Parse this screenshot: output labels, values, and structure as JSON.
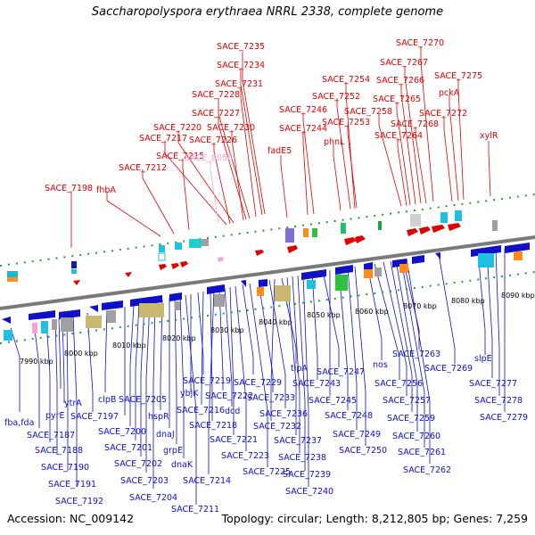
{
  "title": "Saccharopolyspora erythraea NRRL 2338, complete genome",
  "footer": {
    "accession": "Accession: NC_009142",
    "topology": "Topology: circular; Length: 8,212,805 bp; Genes: 7,259"
  },
  "colors": {
    "forward": "#e00000",
    "reverse": "#1010c8",
    "highlight": "#ff9fd8",
    "backbone": "#7a7a7a"
  },
  "kbp_ticks": [
    "7990 kbp",
    "8000 kbp",
    "8010 kbp",
    "8020 kbp",
    "8030 kbp",
    "8040 kbp",
    "8050 kbp",
    "8060 kbp",
    "8070 kbp",
    "8080 kbp",
    "8090 kbp"
  ],
  "forward_labels": [
    "SACE_7235",
    "SACE_7234",
    "SACE_7231",
    "SACE_7228",
    "SACE_7227",
    "SACE_7230",
    "SACE_7220",
    "SACE_7226",
    "SACE_7217",
    "SACE_7215",
    "SACE_8050",
    "SACE_7212",
    "SACE_7198",
    "fhbA",
    "SACE_7254",
    "SACE_7252",
    "SACE_7246",
    "SACE_7253",
    "SACE_7244",
    "phnL",
    "fadE5",
    "SACE_7270",
    "SACE_7267",
    "SACE_7266",
    "SACE_7275",
    "SACE_7265",
    "pckA",
    "SACE_7258",
    "SACE_7272",
    "SACE_7268",
    "SACE_7264",
    "xylR"
  ],
  "reverse_labels": [
    "ytrA",
    "pyrE",
    "fba,fda",
    "SACE_7187",
    "SACE_7188",
    "SACE_7190",
    "SACE_7191",
    "SACE_7192",
    "clpB",
    "SACE_7197",
    "SACE_7205",
    "SACE_7200",
    "SACE_7201",
    "SACE_7202",
    "SACE_7203",
    "SACE_7204",
    "hspR",
    "dnaJ",
    "grpE",
    "dnaK",
    "SACE_7211",
    "ybjK",
    "SACE_7219",
    "SACE_7216",
    "SACE_7218",
    "SACE_7214",
    "SACE_7222",
    "dcd",
    "SACE_7221",
    "SACE_7223",
    "SACE_7229",
    "SACE_7225",
    "SACE_7233",
    "SACE_7236",
    "SACE_7232",
    "tipA",
    "SACE_7237",
    "SACE_7238",
    "SACE_7239",
    "SACE_7240",
    "SACE_7243",
    "SACE_7247",
    "SACE_7245",
    "SACE_7248",
    "SACE_7249",
    "SACE_7250",
    "nos",
    "SACE_7256",
    "SACE_7263",
    "SACE_7257",
    "SACE_7259",
    "SACE_7260",
    "SACE_7261",
    "SACE_7262",
    "SACE_7269",
    "slpE",
    "SACE_7277",
    "SACE_7278",
    "SACE_7279"
  ]
}
